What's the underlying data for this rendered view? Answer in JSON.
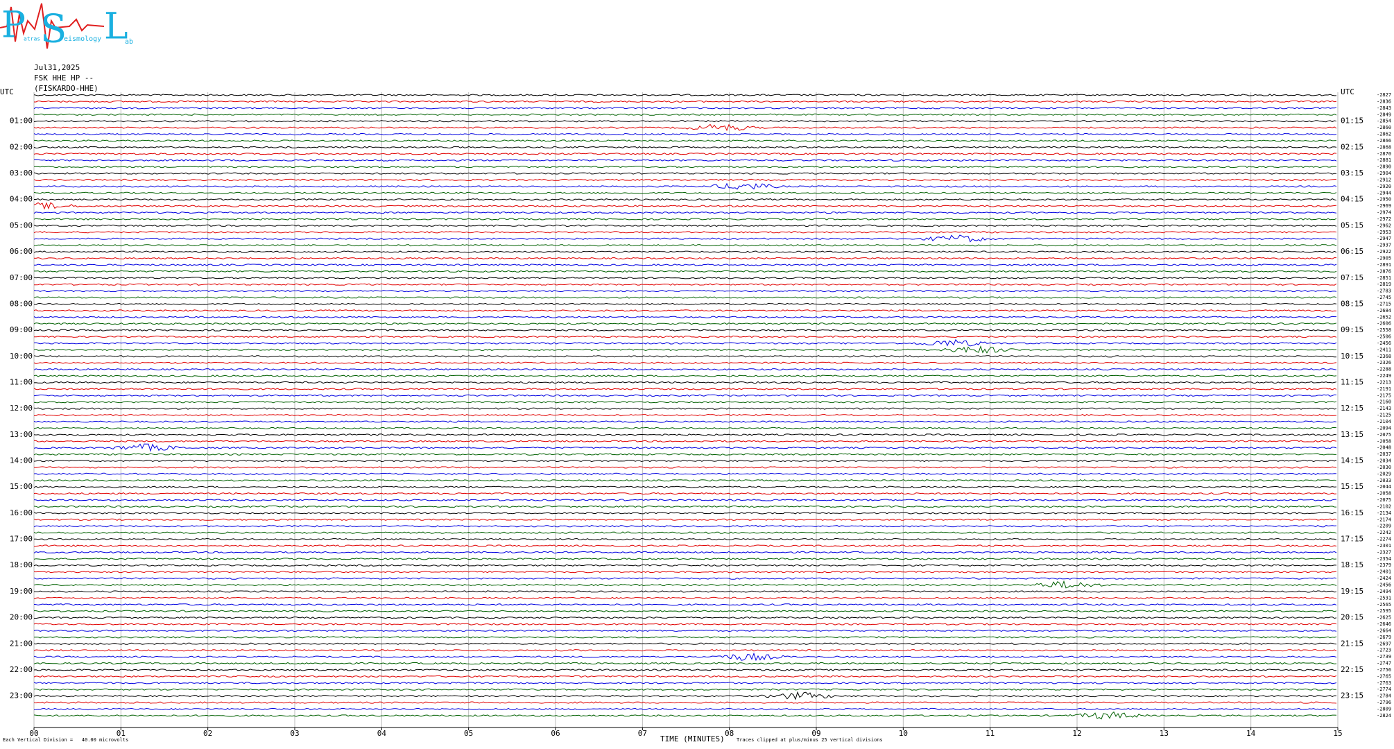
{
  "logo": {
    "letters": [
      "P",
      "S",
      "L"
    ],
    "small": [
      "atras",
      "eismology",
      "ab"
    ]
  },
  "header": {
    "date": "Jul31,2025",
    "station": "FSK HHE HP --",
    "name": "(FISKARDO-HHE)"
  },
  "left_labels": [
    "UTC",
    "01:00",
    "02:00",
    "03:00",
    "04:00",
    "05:00",
    "06:00",
    "07:00",
    "08:00",
    "09:00",
    "10:00",
    "11:00",
    "12:00",
    "13:00",
    "14:00",
    "15:00",
    "16:00",
    "17:00",
    "18:00",
    "19:00",
    "20:00",
    "21:00",
    "22:00",
    "23:00"
  ],
  "right_labels": [
    "UTC",
    "01:15",
    "02:15",
    "03:15",
    "04:15",
    "05:15",
    "06:15",
    "07:15",
    "08:15",
    "09:15",
    "10:15",
    "11:15",
    "12:15",
    "13:15",
    "14:15",
    "15:15",
    "16:15",
    "17:15",
    "18:15",
    "19:15",
    "20:15",
    "21:15",
    "22:15",
    "23:15"
  ],
  "trace_offsets": [
    "-2827",
    "-2836",
    "-2843",
    "-2849",
    "-2854",
    "-2860",
    "-2862",
    "-2866",
    "-2868",
    "-2870",
    "-2881",
    "-2890",
    "-2904",
    "-2912",
    "-2920",
    "-2944",
    "-2950",
    "-2969",
    "-2974",
    "-2972",
    "-2962",
    "-2953",
    "-2947",
    "-2937",
    "-2922",
    "-2905",
    "-2891",
    "-2876",
    "-2851",
    "-2819",
    "-2783",
    "-2745",
    "-2715",
    "-2684",
    "-2652",
    "-2606",
    "-2558",
    "-2506",
    "-2456",
    "-2411",
    "-2368",
    "-2326",
    "-2288",
    "-2249",
    "-2213",
    "-2191",
    "-2175",
    "-2160",
    "-2143",
    "-2125",
    "-2104",
    "-2094",
    "-2075",
    "-2058",
    "-2048",
    "-2037",
    "-2034",
    "-2030",
    "-2029",
    "-2033",
    "-2044",
    "-2058",
    "-2075",
    "-2102",
    "-2134",
    "-2174",
    "-2209",
    "-2242",
    "-2274",
    "-2301",
    "-2327",
    "-2354",
    "-2379",
    "-2401",
    "-2424",
    "-2456",
    "-2494",
    "-2531",
    "-2565",
    "-2595",
    "-2625",
    "-2646",
    "-2664",
    "-2679",
    "-2697",
    "-2723",
    "-2739",
    "-2747",
    "-2756",
    "-2765",
    "-2763",
    "-2774",
    "-2784",
    "-2796",
    "-2809",
    "-2824"
  ],
  "x_ticks": [
    "00",
    "01",
    "02",
    "03",
    "04",
    "05",
    "06",
    "07",
    "08",
    "09",
    "10",
    "11",
    "12",
    "13",
    "14",
    "15"
  ],
  "footer": {
    "scale": "Each Vertical Division =   40.00 microvolts",
    "axis_title": "TIME (MINUTES)",
    "clip_note": "Traces clipped at plus/minus 25 vertical divisions"
  }
}
